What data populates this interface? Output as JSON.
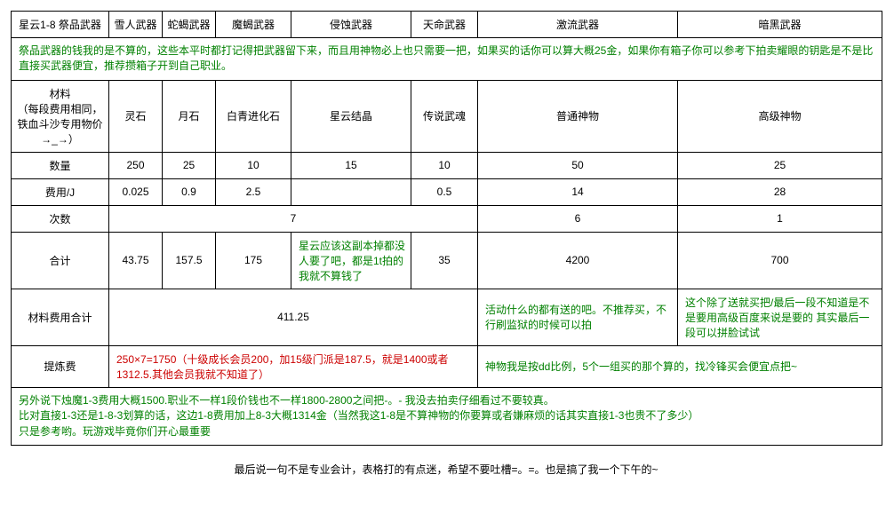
{
  "colors": {
    "border": "#000000",
    "text": "#000000",
    "green": "#008000",
    "red": "#cc0000",
    "bg": "#ffffff"
  },
  "typography": {
    "base_fontsize": 12,
    "font_family": "Microsoft YaHei / SimSun"
  },
  "table": {
    "header1": {
      "c1": "星云1-8 祭品武器",
      "c2": "雪人武器",
      "c3": "蛇蝎武器",
      "c4": "魔蝎武器",
      "c5": "侵蚀武器",
      "c6": "天命武器",
      "c7": "激流武器",
      "c8": "暗黑武器"
    },
    "note1": "祭品武器的钱我的是不算的，这些本平时都打记得把武器留下来，而且用神物必上也只需要一把，如果买的话你可以算大概25金，如果你有箱子你可以参考下拍卖耀眼的钥匙是不是比直接买武器便宜，推荐攒箱子开到自己职业。",
    "header2": {
      "c1": "材料\n（每段费用相同，铁血斗沙专用物价→_→）",
      "c2": "灵石",
      "c3": "月石",
      "c4": "白青进化石",
      "c5": "星云结晶",
      "c6": "传说武魂",
      "c7": "普通神物",
      "c8": "高级神物"
    },
    "qty": {
      "label": "数量",
      "v2": "250",
      "v3": "25",
      "v4": "10",
      "v5": "15",
      "v6": "10",
      "v7": "50",
      "v8": "25"
    },
    "cost": {
      "label": "费用/J",
      "v2": "0.025",
      "v3": "0.9",
      "v4": "2.5",
      "v5": "",
      "v6": "0.5",
      "v7": "14",
      "v8": "28"
    },
    "times": {
      "label": "次数",
      "g1": "7",
      "g2": "6",
      "g3": "1"
    },
    "total": {
      "label": "合计",
      "v2": "43.75",
      "v3": "157.5",
      "v4": "175",
      "v5": "星云应该这副本掉都没人要了吧，都是1t拍的我就不算钱了",
      "v6": "35",
      "v7": "4200",
      "v8": "700"
    },
    "mat_total": {
      "label": "材料费用合计",
      "g1": "411.25",
      "g2": "活动什么的都有送的吧。不推荐买，不行刷监狱的时候可以拍",
      "g3": "这个除了送就买把/最后一段不知道是不是要用高级百度来说是要的 其实最后一段可以拼脸试试"
    },
    "refine": {
      "label": "提炼费",
      "g1": "250×7=1750（十级成长会员200，加15级门派是187.5，就是1400或者1312.5.其他会员我就不知道了）",
      "g2": "神物我是按dd比例，5个一组买的那个算的，找冷锋买会便宜点把~"
    },
    "note2": "另外说下烛魔1-3费用大概1500.职业不一样1段价钱也不一样1800-2800之间把-。- 我没去拍卖仔细看过不要较真。\n比对直接1-3还是1-8-3划算的话，这边1-8费用加上8-3大概1314金（当然我这1-8是不算神物的你要算或者嫌麻烦的话其实直接1-3也贵不了多少）\n只是参考哟。玩游戏毕竟你们开心最重要"
  },
  "footer": "最后说一句不是专业会计，表格打的有点迷，希望不要吐槽=。=。也是搞了我一个下午的~"
}
